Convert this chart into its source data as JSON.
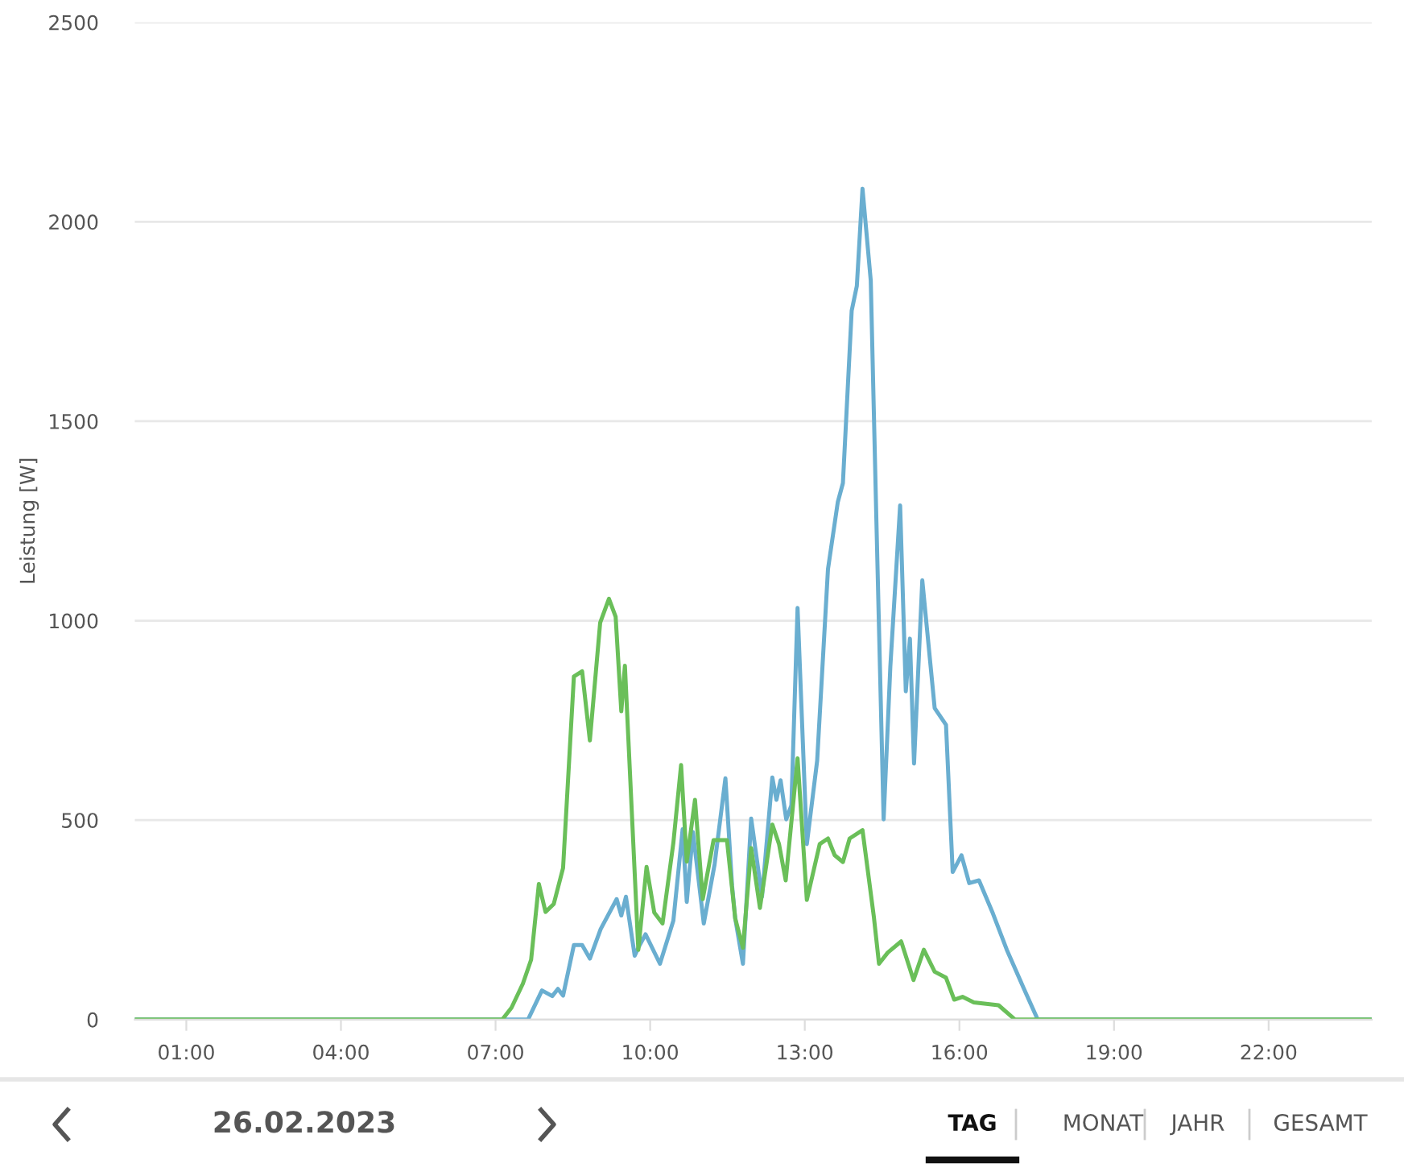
{
  "chart_data": {
    "type": "line",
    "ylabel": "Leistung [W]",
    "xlim": [
      0,
      24
    ],
    "ylim": [
      0,
      2500
    ],
    "xticks": [
      {
        "value": 1,
        "label": "01:00"
      },
      {
        "value": 4,
        "label": "04:00"
      },
      {
        "value": 7,
        "label": "07:00"
      },
      {
        "value": 10,
        "label": "10:00"
      },
      {
        "value": 13,
        "label": "13:00"
      },
      {
        "value": 16,
        "label": "16:00"
      },
      {
        "value": 19,
        "label": "19:00"
      },
      {
        "value": 22,
        "label": "22:00"
      }
    ],
    "yticks": [
      0,
      500,
      1000,
      1500,
      2000,
      2500
    ],
    "grid": "y",
    "marker": "none",
    "line_style": "solid",
    "series": [
      {
        "color": "#6aaed0",
        "x": [
          0,
          7.63,
          7.9,
          8.1,
          8.21,
          8.31,
          8.52,
          8.68,
          8.83,
          9.04,
          9.35,
          9.44,
          9.53,
          9.7,
          9.77,
          9.91,
          10.19,
          10.45,
          10.63,
          10.71,
          10.83,
          11.04,
          11.25,
          11.46,
          11.59,
          11.65,
          11.8,
          11.96,
          12.17,
          12.37,
          12.45,
          12.53,
          12.64,
          12.74,
          12.86,
          13.04,
          13.24,
          13.45,
          13.64,
          13.74,
          13.91,
          14.01,
          14.12,
          14.28,
          14.39,
          14.53,
          14.66,
          14.85,
          14.96,
          15.04,
          15.12,
          15.28,
          15.52,
          15.74,
          15.87,
          16.04,
          16.19,
          16.38,
          16.65,
          16.92,
          17.25,
          17.52,
          24
        ],
        "values": [
          0,
          0,
          73,
          59,
          77,
          60,
          187,
          187,
          153,
          227,
          302,
          261,
          308,
          160,
          180,
          214,
          140,
          248,
          477,
          295,
          470,
          241,
          389,
          605,
          335,
          254,
          140,
          504,
          308,
          607,
          551,
          600,
          502,
          537,
          1032,
          440,
          649,
          1129,
          1297,
          1345,
          1777,
          1839,
          2083,
          1853,
          1248,
          502,
          885,
          1289,
          823,
          955,
          642,
          1101,
          781,
          739,
          370,
          412,
          342,
          349,
          266,
          175,
          78,
          0,
          0
        ]
      },
      {
        "color": "#6abf59",
        "x": [
          0,
          7.13,
          7.31,
          7.53,
          7.69,
          7.84,
          7.97,
          8.13,
          8.31,
          8.52,
          8.68,
          8.83,
          9.03,
          9.2,
          9.33,
          9.44,
          9.51,
          9.77,
          9.93,
          10.08,
          10.24,
          10.45,
          10.6,
          10.71,
          10.87,
          11.02,
          11.23,
          11.49,
          11.65,
          11.8,
          11.96,
          12.13,
          12.37,
          12.5,
          12.63,
          12.86,
          13.04,
          13.29,
          13.45,
          13.58,
          13.74,
          13.87,
          14.12,
          14.34,
          14.44,
          14.61,
          14.87,
          15.11,
          15.31,
          15.52,
          15.74,
          15.9,
          16.06,
          16.28,
          16.76,
          17.08,
          24
        ],
        "values": [
          0,
          0,
          30,
          90,
          150,
          340,
          270,
          290,
          380,
          860,
          873,
          700,
          995,
          1055,
          1010,
          773,
          887,
          175,
          383,
          268,
          241,
          443,
          638,
          396,
          551,
          302,
          450,
          450,
          254,
          180,
          430,
          280,
          489,
          440,
          349,
          655,
          300,
          440,
          454,
          412,
          395,
          454,
          475,
          258,
          140,
          168,
          196,
          99,
          175,
          120,
          105,
          50,
          57,
          43,
          36,
          0,
          0
        ]
      }
    ],
    "annotations": [
      "26.02.2023",
      "TAG",
      "MONAT",
      "JAHR",
      "GESAMT"
    ]
  }
}
